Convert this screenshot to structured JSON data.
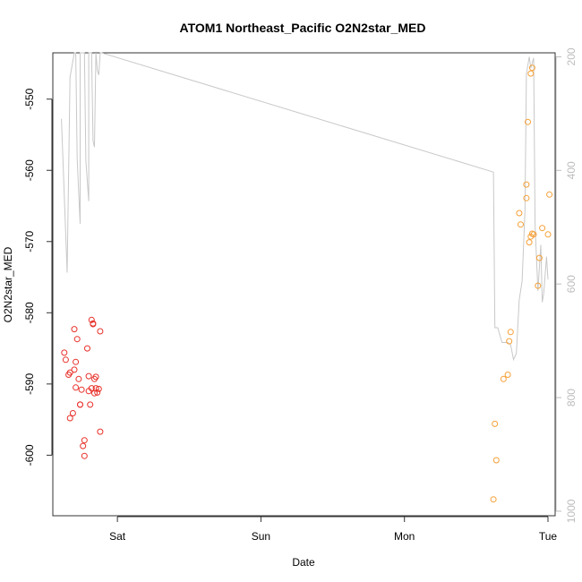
{
  "chart_data": {
    "type": "scatter",
    "title": "ATOM1 Northeast_Pacific O2N2star_MED",
    "xlabel": "Date",
    "ylabel": "O2N2star_MED",
    "x_ticks": [
      "Sat",
      "Sun",
      "Mon",
      "Tue"
    ],
    "x_tick_values": [
      0,
      1,
      2,
      3
    ],
    "x_range": [
      -0.45,
      3.05
    ],
    "y_ticks": [
      -550,
      -560,
      -570,
      -580,
      -590,
      -600
    ],
    "y_range": [
      -608.5,
      -543.5
    ],
    "y2_ticks": [
      200,
      400,
      600,
      800,
      1000
    ],
    "y2_range": [
      1008,
      193
    ],
    "colors": {
      "series_early": "#e8312a",
      "series_late": "#f5a037",
      "line": "#c8c8c8",
      "axis2": "#bdbdbd"
    },
    "series": [
      {
        "color": "red",
        "points": [
          [
            -0.37,
            -585.6
          ],
          [
            -0.36,
            -586.6
          ],
          [
            -0.34,
            -588.7
          ],
          [
            -0.33,
            -588.4
          ],
          [
            -0.33,
            -594.8
          ],
          [
            -0.31,
            -594.1
          ],
          [
            -0.3,
            -588.0
          ],
          [
            -0.3,
            -582.3
          ],
          [
            -0.29,
            -590.5
          ],
          [
            -0.29,
            -586.9
          ],
          [
            -0.28,
            -583.7
          ],
          [
            -0.27,
            -589.3
          ],
          [
            -0.26,
            -592.9
          ],
          [
            -0.26,
            -592.9
          ],
          [
            -0.25,
            -590.8
          ],
          [
            -0.24,
            -598.7
          ],
          [
            -0.23,
            -600.1
          ],
          [
            -0.23,
            -597.9
          ],
          [
            -0.21,
            -585.0
          ],
          [
            -0.2,
            -588.9
          ],
          [
            -0.2,
            -591.0
          ],
          [
            -0.19,
            -592.9
          ],
          [
            -0.18,
            -581.0
          ],
          [
            -0.18,
            -590.6
          ],
          [
            -0.17,
            -581.6
          ],
          [
            -0.17,
            -581.5
          ],
          [
            -0.16,
            -589.3
          ],
          [
            -0.16,
            -591.3
          ],
          [
            -0.15,
            -590.6
          ],
          [
            -0.15,
            -589.0
          ],
          [
            -0.14,
            -591.2
          ],
          [
            -0.13,
            -590.7
          ],
          [
            -0.12,
            -582.6
          ],
          [
            -0.12,
            -596.7
          ]
        ]
      },
      {
        "color": "orange",
        "points": [
          [
            2.62,
            -606.2
          ],
          [
            2.63,
            -595.6
          ],
          [
            2.64,
            -600.7
          ],
          [
            2.69,
            -589.3
          ],
          [
            2.72,
            -588.7
          ],
          [
            2.73,
            -584.0
          ],
          [
            2.74,
            -582.7
          ],
          [
            2.8,
            -566.0
          ],
          [
            2.81,
            -567.6
          ],
          [
            2.85,
            -562.0
          ],
          [
            2.85,
            -563.9
          ],
          [
            2.86,
            -553.2
          ],
          [
            2.87,
            -570.1
          ],
          [
            2.88,
            -569.3
          ],
          [
            2.88,
            -546.4
          ],
          [
            2.89,
            -545.6
          ],
          [
            2.89,
            -568.9
          ],
          [
            2.9,
            -569.0
          ],
          [
            2.93,
            -576.2
          ],
          [
            2.94,
            -572.3
          ],
          [
            2.96,
            -568.1
          ],
          [
            3.0,
            -569.0
          ],
          [
            3.01,
            -563.4
          ]
        ]
      }
    ],
    "line_series": {
      "axis": "right",
      "points": [
        [
          -0.39,
          309
        ],
        [
          -0.35,
          580
        ],
        [
          -0.33,
          236
        ],
        [
          -0.3,
          179
        ],
        [
          -0.29,
          174
        ],
        [
          -0.28,
          380
        ],
        [
          -0.26,
          494
        ],
        [
          -0.26,
          174
        ],
        [
          -0.24,
          178
        ],
        [
          -0.23,
          178
        ],
        [
          -0.22,
          383
        ],
        [
          -0.2,
          454
        ],
        [
          -0.2,
          178
        ],
        [
          -0.18,
          182
        ],
        [
          -0.17,
          348
        ],
        [
          -0.16,
          359
        ],
        [
          -0.15,
          166
        ],
        [
          -0.14,
          224
        ],
        [
          -0.13,
          232
        ],
        [
          -0.12,
          150
        ],
        [
          -0.11,
          159
        ],
        [
          2.62,
          403
        ],
        [
          2.63,
          677
        ],
        [
          2.65,
          677
        ],
        [
          2.68,
          703
        ],
        [
          2.72,
          703
        ],
        [
          2.74,
          707
        ],
        [
          2.76,
          733
        ],
        [
          2.78,
          722
        ],
        [
          2.8,
          628
        ],
        [
          2.82,
          595
        ],
        [
          2.84,
          472
        ],
        [
          2.85,
          230
        ],
        [
          2.87,
          200
        ],
        [
          2.88,
          220
        ],
        [
          2.9,
          202
        ],
        [
          2.91,
          498
        ],
        [
          2.93,
          612
        ],
        [
          2.95,
          531
        ],
        [
          2.96,
          632
        ],
        [
          2.97,
          617
        ],
        [
          2.99,
          552
        ],
        [
          3.0,
          592
        ]
      ]
    }
  }
}
